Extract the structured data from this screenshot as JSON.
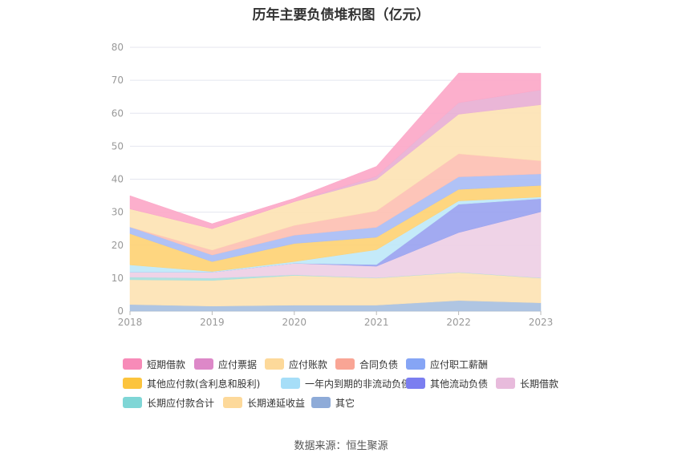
{
  "chart_data": {
    "type": "area",
    "title": "历年主要负债堆积图（亿元）",
    "categories": [
      "2018",
      "2019",
      "2020",
      "2021",
      "2022",
      "2023"
    ],
    "ylim": [
      0,
      80
    ],
    "yticks": [
      0,
      10,
      20,
      30,
      40,
      50,
      60,
      70,
      80
    ],
    "grid": true,
    "legend_position": "bottom",
    "series": [
      {
        "name": "其它",
        "color": "#a8c0e0",
        "values": [
          2.0,
          1.5,
          1.8,
          1.8,
          3.2,
          2.5
        ]
      },
      {
        "name": "长期递延收益",
        "color": "#fde3b4",
        "values": [
          7.5,
          7.8,
          9.0,
          8.2,
          8.5,
          7.5
        ]
      },
      {
        "name": "长期应付款合计",
        "color": "#a8e0de",
        "values": [
          0.8,
          0.7,
          0.2,
          0.1,
          0.1,
          0.1
        ]
      },
      {
        "name": "长期借款",
        "color": "#eecfe5",
        "values": [
          1.5,
          1.8,
          3.5,
          3.5,
          12.0,
          20.0
        ]
      },
      {
        "name": "其他流动负债",
        "color": "#9aa3f0",
        "values": [
          0.0,
          0.0,
          0.0,
          0.5,
          8.6,
          4.0
        ]
      },
      {
        "name": "一年内到期的非流动负债",
        "color": "#bfe8f8",
        "values": [
          2.2,
          0.2,
          0.5,
          4.5,
          1.0,
          0.5
        ]
      },
      {
        "name": "其他应付款(含利息和股利)",
        "color": "#fed275",
        "values": [
          9.5,
          3.0,
          5.5,
          3.8,
          3.5,
          3.5
        ]
      },
      {
        "name": "应付职工薪酬",
        "color": "#a9bdf5",
        "values": [
          2.0,
          2.0,
          2.5,
          3.0,
          3.8,
          3.5
        ]
      },
      {
        "name": "合同负债",
        "color": "#fdc0b3",
        "values": [
          0.0,
          1.5,
          3.0,
          5.0,
          7.0,
          4.0
        ]
      },
      {
        "name": "应付账款",
        "color": "#fde3b4",
        "values": [
          5.5,
          6.5,
          7.2,
          9.5,
          12.0,
          17.0
        ]
      },
      {
        "name": "应付票据",
        "color": "#e8b0d4",
        "values": [
          0.0,
          0.0,
          0.0,
          1.0,
          3.5,
          4.5
        ]
      },
      {
        "name": "短期借款",
        "color": "#fca8c8",
        "values": [
          4.0,
          1.5,
          1.0,
          3.0,
          9.0,
          5.0
        ]
      }
    ]
  },
  "legend": [
    {
      "label": "短期借款",
      "color": "#f78bb8"
    },
    {
      "label": "应付票据",
      "color": "#dd88c8"
    },
    {
      "label": "应付账款",
      "color": "#fdd99a"
    },
    {
      "label": "合同负债",
      "color": "#f9a595"
    },
    {
      "label": "应付职工薪酬",
      "color": "#86a5f5"
    },
    {
      "label": "其他应付款(含利息和股利)",
      "color": "#fcc43d"
    },
    {
      "label": "一年内到期的非流动负债",
      "color": "#a6def8"
    },
    {
      "label": "其他流动负债",
      "color": "#7b7ef0"
    },
    {
      "label": "长期借款",
      "color": "#e8bbdc"
    },
    {
      "label": "长期应付款合计",
      "color": "#7fd6d6"
    },
    {
      "label": "长期递延收益",
      "color": "#fdd99a"
    },
    {
      "label": "其它",
      "color": "#8eabd8"
    }
  ],
  "source": "数据来源：恒生聚源"
}
